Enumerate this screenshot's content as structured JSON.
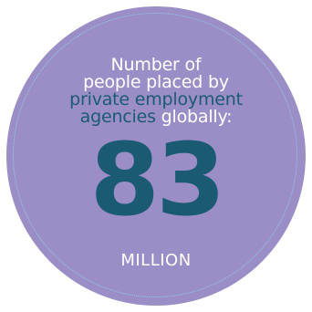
{
  "infographic": {
    "line1": "Number of",
    "line2": "people placed by",
    "line3_accent": "private employment",
    "line4_accent": "agencies",
    "line4_rest": " globally:",
    "value": "83",
    "unit": "MILLION"
  },
  "colors": {
    "circle": "#9b8ec7",
    "ring": "#8fd3e0",
    "accent": "#1a5a73",
    "text": "#ffffff"
  }
}
